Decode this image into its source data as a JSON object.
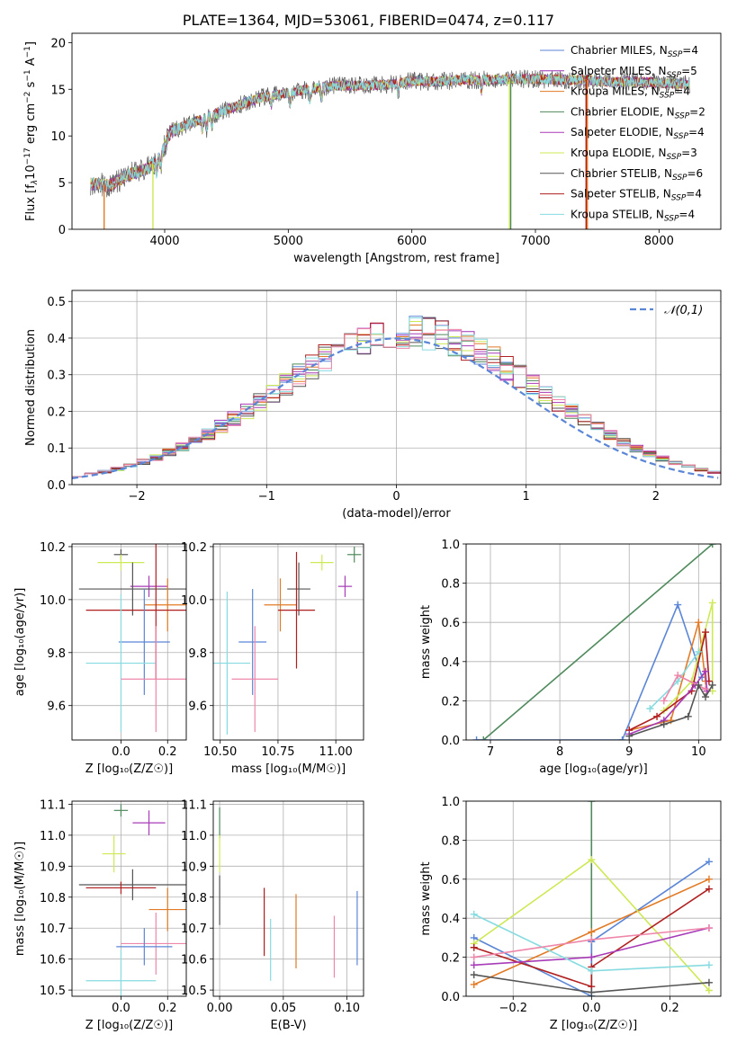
{
  "colors": {
    "chabrier_miles": "#5b86d6",
    "salpeter_miles": "#9c34b6",
    "kroupa_miles": "#e27b26",
    "chabrier_elodie": "#4f8a5d",
    "salpeter_elodie": "#a83bb7",
    "kroupa_elodie": "#cde955",
    "chabrier_stelib": "#555555",
    "salpeter_stelib": "#b01f1f",
    "kroupa_stelib": "#86dbe0",
    "pink": "#ee86aa",
    "gaussian": "#5b86d6"
  },
  "chart_data": [
    {
      "id": "spectrum",
      "type": "line",
      "title": "PLATE=1364, MJD=53061, FIBERID=0474, z=0.117",
      "xlabel": "wavelength [Angstrom, rest frame]",
      "ylabel_parts": [
        "Flux [f",
        "λ",
        "10",
        "−17",
        " erg cm",
        "−2",
        " s",
        "−1",
        " A",
        "−1",
        "]"
      ],
      "xlim": [
        3250,
        8500
      ],
      "ylim": [
        0,
        21
      ],
      "xticks": [
        4000,
        5000,
        6000,
        7000,
        8000
      ],
      "yticks": [
        0,
        5,
        10,
        15,
        20
      ],
      "grid": false,
      "legend_position": "right",
      "x_range_data": [
        3400,
        8250
      ],
      "continuum": {
        "x": [
          3400,
          3550,
          3700,
          3850,
          3950,
          4050,
          4200,
          4400,
          4600,
          4800,
          5000,
          5200,
          5400,
          5600,
          5800,
          6000,
          6200,
          6400,
          6600,
          6800,
          7000,
          7200,
          7400,
          7600,
          7800,
          8000,
          8250
        ],
        "y": [
          4.9,
          4.7,
          5.8,
          6.4,
          7.5,
          10.5,
          11.3,
          12.3,
          13.3,
          14.2,
          14.6,
          15.1,
          15.4,
          15.4,
          15.5,
          15.9,
          15.8,
          16.0,
          16.0,
          16.1,
          16.1,
          16.0,
          16.0,
          15.8,
          15.8,
          15.7,
          15.5
        ]
      },
      "legend": [
        {
          "name": "Chabrier MILES, N",
          "sub": "SSP",
          "post": "=4",
          "color": "#5b86d6"
        },
        {
          "name": "Salpeter MILES, N",
          "sub": "SSP",
          "post": "=5",
          "color": "#9c34b6"
        },
        {
          "name": "Kroupa MILES, N",
          "sub": "SSP",
          "post": "=4",
          "color": "#e27b26"
        },
        {
          "name": "Chabrier ELODIE, N",
          "sub": "SSP",
          "post": "=2",
          "color": "#4f8a5d"
        },
        {
          "name": "Salpeter ELODIE, N",
          "sub": "SSP",
          "post": "=4",
          "color": "#a83bb7"
        },
        {
          "name": "Kroupa ELODIE, N",
          "sub": "SSP",
          "post": "=3",
          "color": "#cde955"
        },
        {
          "name": "Chabrier STELIB, N",
          "sub": "SSP",
          "post": "=6",
          "color": "#555555"
        },
        {
          "name": "Salpeter STELIB, N",
          "sub": "SSP",
          "post": "=4",
          "color": "#b01f1f"
        },
        {
          "name": "Kroupa STELIB, N",
          "sub": "SSP",
          "post": "=4",
          "color": "#86dbe0"
        }
      ],
      "drops": [
        {
          "x": 3510,
          "color": "#e27b26"
        },
        {
          "x": 3905,
          "color": "#cde955"
        },
        {
          "x": 6790,
          "color": "#cde955"
        },
        {
          "x": 6800,
          "color": "#4f8a5d"
        },
        {
          "x": 7410,
          "color": "#b01f1f"
        },
        {
          "x": 7420,
          "color": "#e27b26"
        }
      ]
    },
    {
      "id": "residuals",
      "type": "bar",
      "xlabel": "(data-model)/error",
      "ylabel": "Normed distribution",
      "xlim": [
        -2.5,
        2.5
      ],
      "ylim": [
        0,
        0.53
      ],
      "xticks": [
        -2,
        -1,
        0,
        1,
        2
      ],
      "xtick_labels": [
        "−2",
        "−1",
        "0",
        "1",
        "2"
      ],
      "yticks": [
        0.0,
        0.1,
        0.2,
        0.3,
        0.4,
        0.5
      ],
      "ytick_labels": [
        "0.0",
        "0.1",
        "0.2",
        "0.3",
        "0.4",
        "0.5"
      ],
      "grid": true,
      "bin_width": 0.1,
      "legend": {
        "name": "𝒩(0,1)",
        "position": "top-right"
      },
      "gaussian": {
        "mu": 0,
        "sigma": 1
      }
    },
    {
      "id": "age-vs-Z",
      "type": "scatter",
      "xlabel": "Z [log₁₀(Z/Z☉)]",
      "ylabel": "age  [log₁₀(age/yr)]",
      "xlim": [
        -0.21,
        0.28
      ],
      "ylim": [
        9.47,
        10.21
      ],
      "xticks": [
        0.0,
        0.2
      ],
      "xtick_labels": [
        "0.0",
        "0.2"
      ],
      "yticks": [
        9.6,
        9.8,
        10.0,
        10.2
      ],
      "ytick_labels": [
        "9.6",
        "9.8",
        "10.0",
        "10.2"
      ],
      "grid": true,
      "points": [
        {
          "x": 0.0,
          "y": 10.17,
          "xerr": 0.03,
          "yerr": 0.02,
          "color": "#555555"
        },
        {
          "x": 0.0,
          "y": 10.14,
          "xerr": 0.1,
          "yerr": 0.03,
          "color": "#cde955"
        },
        {
          "x": 0.12,
          "y": 10.05,
          "xerr": 0.08,
          "yerr": 0.04,
          "color": "#a83bb7"
        },
        {
          "x": 0.05,
          "y": 10.04,
          "xerr": 0.23,
          "yerr": 0.1,
          "color": "#555555"
        },
        {
          "x": 0.2,
          "y": 9.98,
          "xerr": 0.1,
          "yerr": 0.1,
          "color": "#e27b26"
        },
        {
          "x": 0.15,
          "y": 9.96,
          "xerr": 0.3,
          "yerr": 0.26,
          "color": "#b01f1f"
        },
        {
          "x": 0.1,
          "y": 9.84,
          "xerr": 0.11,
          "yerr": 0.2,
          "color": "#5b86d6"
        },
        {
          "x": 0.0,
          "y": 9.76,
          "xerr": 0.15,
          "yerr": 0.26,
          "color": "#86dbe0"
        },
        {
          "x": 0.15,
          "y": 9.7,
          "xerr": 0.15,
          "yerr": 0.2,
          "color": "#ee86aa"
        }
      ]
    },
    {
      "id": "age-vs-mass",
      "type": "scatter",
      "xlabel": "mass [log₁₀(M/M☉)]",
      "ylabel": "",
      "xlim": [
        10.47,
        11.12
      ],
      "ylim": [
        9.47,
        10.21
      ],
      "xticks": [
        10.5,
        10.75,
        11.0
      ],
      "xtick_labels": [
        "10.50",
        "10.75",
        "11.00"
      ],
      "yticks": [
        9.6,
        9.8,
        10.0,
        10.2
      ],
      "ytick_labels": [
        "9.6",
        "9.8",
        "10.0",
        "10.2"
      ],
      "grid": true,
      "points": [
        {
          "x": 11.08,
          "y": 10.17,
          "xerr": 0.03,
          "yerr": 0.03,
          "color": "#4f8a5d"
        },
        {
          "x": 10.94,
          "y": 10.14,
          "xerr": 0.05,
          "yerr": 0.03,
          "color": "#cde955"
        },
        {
          "x": 11.04,
          "y": 10.05,
          "xerr": 0.03,
          "yerr": 0.04,
          "color": "#a83bb7"
        },
        {
          "x": 10.84,
          "y": 10.04,
          "xerr": 0.05,
          "yerr": 0.1,
          "color": "#555555"
        },
        {
          "x": 10.76,
          "y": 9.98,
          "xerr": 0.07,
          "yerr": 0.1,
          "color": "#e27b26"
        },
        {
          "x": 10.83,
          "y": 9.96,
          "xerr": 0.08,
          "yerr": 0.22,
          "color": "#b01f1f"
        },
        {
          "x": 10.64,
          "y": 9.84,
          "xerr": 0.06,
          "yerr": 0.2,
          "color": "#5b86d6"
        },
        {
          "x": 10.53,
          "y": 9.76,
          "xerr": 0.1,
          "yerr": 0.27,
          "color": "#86dbe0"
        },
        {
          "x": 10.65,
          "y": 9.7,
          "xerr": 0.1,
          "yerr": 0.2,
          "color": "#ee86aa"
        }
      ]
    },
    {
      "id": "massweight-vs-age",
      "type": "line",
      "xlabel": "age  [log₁₀(age/yr)]",
      "ylabel": "mass weight",
      "xlim": [
        6.65,
        10.32
      ],
      "ylim": [
        0,
        1.0
      ],
      "xticks": [
        7,
        8,
        9,
        10
      ],
      "xtick_labels": [
        "7",
        "8",
        "9",
        "10"
      ],
      "yticks": [
        0.0,
        0.2,
        0.4,
        0.6,
        0.8,
        1.0
      ],
      "ytick_labels": [
        "0.0",
        "0.2",
        "0.4",
        "0.6",
        "0.8",
        "1.0"
      ],
      "grid": true,
      "series": [
        {
          "color": "#4f8a5d",
          "x": [
            6.9,
            10.2
          ],
          "y": [
            0.0,
            1.0
          ]
        },
        {
          "color": "#5b86d6",
          "x": [
            6.8,
            8.9,
            9.7,
            10.05
          ],
          "y": [
            0.0,
            0.0,
            0.69,
            0.32
          ]
        },
        {
          "color": "#e27b26",
          "x": [
            9.0,
            9.6,
            10.0,
            10.1
          ],
          "y": [
            0.05,
            0.1,
            0.6,
            0.3
          ]
        },
        {
          "color": "#cde955",
          "x": [
            9.5,
            9.9,
            10.2,
            10.2
          ],
          "y": [
            0.15,
            0.3,
            0.7,
            0.25
          ]
        },
        {
          "color": "#b01f1f",
          "x": [
            9.0,
            9.4,
            9.9,
            10.1,
            10.15
          ],
          "y": [
            0.05,
            0.12,
            0.25,
            0.55,
            0.3
          ]
        },
        {
          "color": "#a83bb7",
          "x": [
            9.0,
            9.5,
            9.95,
            10.1,
            10.12
          ],
          "y": [
            0.03,
            0.1,
            0.28,
            0.35,
            0.25
          ]
        },
        {
          "color": "#86dbe0",
          "x": [
            9.3,
            9.7,
            10.0
          ],
          "y": [
            0.16,
            0.3,
            0.45
          ]
        },
        {
          "color": "#ee86aa",
          "x": [
            9.5,
            9.7,
            10.1
          ],
          "y": [
            0.2,
            0.33,
            0.26
          ]
        },
        {
          "color": "#555555",
          "x": [
            9.0,
            9.5,
            9.85,
            10.0,
            10.1,
            10.2
          ],
          "y": [
            0.02,
            0.08,
            0.12,
            0.28,
            0.22,
            0.28
          ]
        }
      ]
    },
    {
      "id": "mass-vs-Z",
      "type": "scatter",
      "xlabel": "Z [log₁₀(Z/Z☉)]",
      "ylabel": "mass [log₁₀(M/M☉)]",
      "xlim": [
        -0.21,
        0.28
      ],
      "ylim": [
        10.48,
        11.11
      ],
      "xticks": [
        0.0,
        0.2
      ],
      "xtick_labels": [
        "0.0",
        "0.2"
      ],
      "yticks": [
        10.5,
        10.6,
        10.7,
        10.8,
        10.9,
        11.0,
        11.1
      ],
      "ytick_labels": [
        "10.5",
        "10.6",
        "10.7",
        "10.8",
        "10.9",
        "11.0",
        "11.1"
      ],
      "grid": true,
      "points": [
        {
          "x": 0.0,
          "y": 11.08,
          "xerr": 0.03,
          "yerr": 0.02,
          "color": "#4f8a5d"
        },
        {
          "x": 0.12,
          "y": 11.04,
          "xerr": 0.07,
          "yerr": 0.04,
          "color": "#a83bb7"
        },
        {
          "x": -0.03,
          "y": 10.94,
          "xerr": 0.05,
          "yerr": 0.06,
          "color": "#cde955"
        },
        {
          "x": 0.05,
          "y": 10.84,
          "xerr": 0.23,
          "yerr": 0.05,
          "color": "#555555"
        },
        {
          "x": 0.0,
          "y": 10.83,
          "xerr": 0.15,
          "yerr": 0.02,
          "color": "#b01f1f"
        },
        {
          "x": 0.2,
          "y": 10.76,
          "xerr": 0.08,
          "yerr": 0.07,
          "color": "#e27b26"
        },
        {
          "x": 0.15,
          "y": 10.65,
          "xerr": 0.15,
          "yerr": 0.1,
          "color": "#ee86aa"
        },
        {
          "x": 0.1,
          "y": 10.64,
          "xerr": 0.12,
          "yerr": 0.06,
          "color": "#5b86d6"
        },
        {
          "x": 0.0,
          "y": 10.53,
          "xerr": 0.15,
          "yerr": 0.1,
          "color": "#86dbe0"
        }
      ]
    },
    {
      "id": "mass-vs-ebv",
      "type": "scatter",
      "xlabel": "E(B-V)",
      "ylabel": "",
      "xlim": [
        -0.005,
        0.113
      ],
      "ylim": [
        10.48,
        11.11
      ],
      "xticks": [
        0.0,
        0.05,
        0.1
      ],
      "xtick_labels": [
        "0.00",
        "0.05",
        "0.10"
      ],
      "yticks": [
        10.5,
        10.6,
        10.7,
        10.8,
        10.9,
        11.0,
        11.1
      ],
      "ytick_labels": [
        "10.5",
        "10.6",
        "10.7",
        "10.8",
        "10.9",
        "11.0",
        "11.1"
      ],
      "grid": true,
      "points": [
        {
          "x": 0.0,
          "y": 11.04,
          "yerr": 0.05,
          "color": "#4f8a5d"
        },
        {
          "x": 0.0,
          "y": 10.94,
          "yerr": 0.06,
          "color": "#cde955"
        },
        {
          "x": 0.0,
          "y": 10.79,
          "yerr": 0.08,
          "color": "#555555"
        },
        {
          "x": 0.035,
          "y": 10.72,
          "yerr": 0.11,
          "color": "#b01f1f"
        },
        {
          "x": 0.04,
          "y": 10.63,
          "yerr": 0.1,
          "color": "#86dbe0"
        },
        {
          "x": 0.06,
          "y": 10.69,
          "yerr": 0.12,
          "color": "#e27b26"
        },
        {
          "x": 0.09,
          "y": 10.64,
          "yerr": 0.1,
          "color": "#ee86aa"
        },
        {
          "x": 0.108,
          "y": 10.7,
          "yerr": 0.12,
          "color": "#5b86d6"
        }
      ]
    },
    {
      "id": "massweight-vs-Z",
      "type": "line",
      "xlabel": "Z [log₁₀(Z/Z☉)]",
      "ylabel": "mass weight",
      "xlim": [
        -0.32,
        0.33
      ],
      "ylim": [
        0,
        1.0
      ],
      "xticks": [
        -0.2,
        0.0,
        0.2
      ],
      "xtick_labels": [
        "−0.2",
        "0.0",
        "0.2"
      ],
      "yticks": [
        0.0,
        0.2,
        0.4,
        0.6,
        0.8,
        1.0
      ],
      "ytick_labels": [
        "0.0",
        "0.2",
        "0.4",
        "0.6",
        "0.8",
        "1.0"
      ],
      "grid": true,
      "series": [
        {
          "color": "#4f8a5d",
          "x": [
            0.0,
            0.0
          ],
          "y": [
            0.0,
            1.0
          ]
        },
        {
          "color": "#5b86d6",
          "x": [
            -0.3,
            0.0,
            0.0,
            0.3
          ],
          "y": [
            0.3,
            0.0,
            0.28,
            0.69
          ]
        },
        {
          "color": "#e27b26",
          "x": [
            -0.3,
            0.0,
            0.3
          ],
          "y": [
            0.06,
            0.33,
            0.6
          ]
        },
        {
          "color": "#cde955",
          "x": [
            -0.3,
            0.0,
            0.3
          ],
          "y": [
            0.27,
            0.7,
            0.03
          ]
        },
        {
          "color": "#b01f1f",
          "x": [
            -0.3,
            0.0,
            0.0,
            0.3
          ],
          "y": [
            0.25,
            0.05,
            0.15,
            0.55
          ]
        },
        {
          "color": "#a83bb7",
          "x": [
            -0.3,
            0.0,
            0.3
          ],
          "y": [
            0.16,
            0.2,
            0.35
          ]
        },
        {
          "color": "#86dbe0",
          "x": [
            -0.3,
            0.0,
            0.3
          ],
          "y": [
            0.42,
            0.13,
            0.16
          ]
        },
        {
          "color": "#ee86aa",
          "x": [
            -0.3,
            0.0,
            0.3
          ],
          "y": [
            0.2,
            0.29,
            0.35
          ]
        },
        {
          "color": "#555555",
          "x": [
            -0.3,
            0.0,
            0.3
          ],
          "y": [
            0.11,
            0.02,
            0.07
          ]
        }
      ]
    }
  ]
}
